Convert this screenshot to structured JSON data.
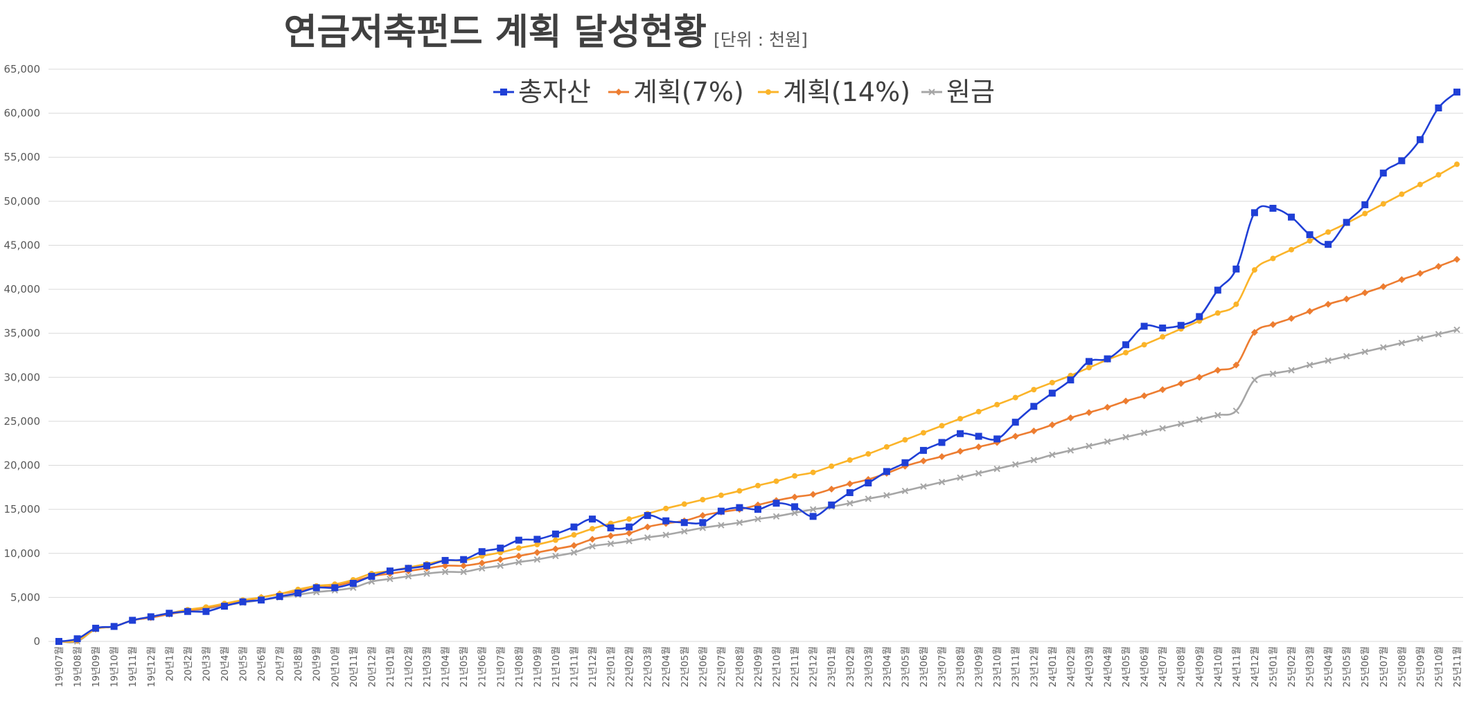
{
  "chart_data": {
    "type": "line",
    "title": "연금저축펀드 계획 달성현황",
    "subtitle": "[단위 : 천원]",
    "xlabel": "",
    "ylabel": "",
    "ylim": [
      0,
      65000
    ],
    "ytick_step": 5000,
    "grid": true,
    "legend_position": "top-center",
    "categories": [
      "19년07월",
      "19년08월",
      "19년09월",
      "19년10월",
      "19년11월",
      "19년12월",
      "20년1월",
      "20년2월",
      "20년3월",
      "20년4월",
      "20년5월",
      "20년6월",
      "20년7월",
      "20년8월",
      "20년9월",
      "20년10월",
      "20년11월",
      "20년12월",
      "21년01월",
      "21년02월",
      "21년03월",
      "21년04월",
      "21년05월",
      "21년06월",
      "21년07월",
      "21년08월",
      "21년09월",
      "21년10월",
      "21년11월",
      "21년12월",
      "22년01월",
      "22년02월",
      "22년03월",
      "22년04월",
      "22년05월",
      "22년06월",
      "22년07월",
      "22년08월",
      "22년09월",
      "22년10월",
      "22년11월",
      "22년12월",
      "23년01월",
      "23년02월",
      "23년03월",
      "23년04월",
      "23년05월",
      "23년06월",
      "23년07월",
      "23년08월",
      "23년09월",
      "23년10월",
      "23년11월",
      "23년12월",
      "24년01월",
      "24년02월",
      "24년03월",
      "24년04월",
      "24년05월",
      "24년06월",
      "24년07월",
      "24년08월",
      "24년09월",
      "24년10월",
      "24년11월",
      "24년12월",
      "25년01월",
      "25년02월",
      "25년03월",
      "25년04월",
      "25년05월",
      "25년06월",
      "25년07월",
      "25년08월",
      "25년09월",
      "25년10월",
      "25년11월"
    ],
    "series": [
      {
        "name": "총자산",
        "color": "#1f3fd6",
        "marker": "square",
        "values": [
          0,
          300,
          1500,
          1700,
          2400,
          2800,
          3200,
          3400,
          3400,
          4000,
          4500,
          4700,
          5100,
          5500,
          6100,
          6100,
          6600,
          7400,
          8000,
          8300,
          8600,
          9200,
          9300,
          10200,
          10600,
          11500,
          11600,
          12200,
          13000,
          13900,
          12900,
          13000,
          14300,
          13700,
          13500,
          13500,
          14800,
          15200,
          15000,
          15700,
          15300,
          14200,
          15500,
          16900,
          18000,
          19300,
          20300,
          21700,
          22600,
          23600,
          23300,
          23000,
          24900,
          26700,
          28200,
          29700,
          31800,
          32100,
          33700,
          35800,
          35600,
          35900,
          36900,
          39900,
          42300,
          48700,
          49200,
          48200,
          46200,
          45100,
          47600,
          49600,
          53200,
          54600,
          57000,
          60600,
          62400
        ]
      },
      {
        "name": "계획(7%)",
        "color": "#ed7d31",
        "marker": "diamond",
        "values": [
          0,
          100,
          1400,
          1700,
          2400,
          2700,
          3100,
          3500,
          3800,
          4200,
          4600,
          5000,
          5400,
          5700,
          6100,
          6300,
          6800,
          7400,
          7700,
          8000,
          8300,
          8600,
          8600,
          8900,
          9300,
          9700,
          10100,
          10500,
          10900,
          11600,
          12000,
          12300,
          13000,
          13400,
          13700,
          14300,
          14700,
          15000,
          15500,
          16000,
          16400,
          16700,
          17300,
          17900,
          18400,
          19100,
          19900,
          20500,
          21000,
          21600,
          22100,
          22600,
          23300,
          23900,
          24600,
          25400,
          26000,
          26600,
          27300,
          27900,
          28600,
          29300,
          30000,
          30800,
          31400,
          35100,
          36000,
          36700,
          37500,
          38300,
          38900,
          39600,
          40300,
          41100,
          41800,
          42600,
          43400
        ]
      },
      {
        "name": "계획(14%)",
        "color": "#fbb429",
        "marker": "circle",
        "values": [
          0,
          100,
          1400,
          1700,
          2400,
          2800,
          3200,
          3600,
          3900,
          4300,
          4700,
          5000,
          5400,
          5900,
          6300,
          6500,
          7000,
          7700,
          8000,
          8400,
          8800,
          9200,
          9200,
          9700,
          10100,
          10600,
          11000,
          11500,
          12100,
          12800,
          13400,
          13900,
          14500,
          15100,
          15600,
          16100,
          16600,
          17100,
          17700,
          18200,
          18800,
          19200,
          19900,
          20600,
          21300,
          22100,
          22900,
          23700,
          24500,
          25300,
          26100,
          26900,
          27700,
          28600,
          29400,
          30200,
          31100,
          32000,
          32800,
          33700,
          34600,
          35500,
          36400,
          37300,
          38300,
          42200,
          43500,
          44500,
          45500,
          46500,
          47500,
          48600,
          49700,
          50800,
          51900,
          53000,
          54200
        ]
      },
      {
        "name": "원금",
        "color": "#a6a6a6",
        "marker": "x",
        "values": [
          0,
          0,
          1400,
          1700,
          2400,
          2700,
          3100,
          3400,
          3700,
          4100,
          4400,
          4700,
          5000,
          5300,
          5600,
          5800,
          6100,
          6800,
          7100,
          7400,
          7700,
          7900,
          7900,
          8300,
          8600,
          9000,
          9300,
          9700,
          10100,
          10800,
          11100,
          11400,
          11800,
          12100,
          12500,
          12900,
          13200,
          13500,
          13900,
          14200,
          14600,
          15000,
          15300,
          15700,
          16200,
          16600,
          17100,
          17600,
          18100,
          18600,
          19100,
          19600,
          20100,
          20600,
          21200,
          21700,
          22200,
          22700,
          23200,
          23700,
          24200,
          24700,
          25200,
          25700,
          26200,
          29700,
          30400,
          30800,
          31400,
          31900,
          32400,
          32900,
          33400,
          33900,
          34400,
          34900,
          35400
        ]
      }
    ]
  }
}
